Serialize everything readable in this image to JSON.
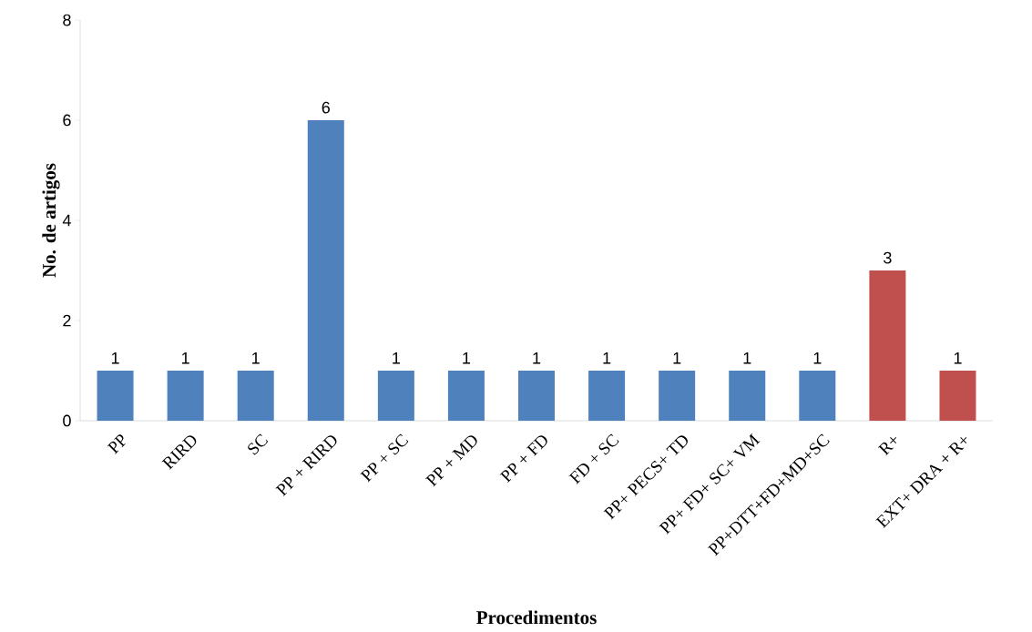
{
  "chart_data": {
    "type": "bar",
    "xlabel": "Procedimentos",
    "ylabel": "No. de artigos",
    "categories": [
      "PP",
      "RIRD",
      "SC",
      "PP + RIRD",
      "PP + SC",
      "PP + MD",
      "PP + FD",
      "FD + SC",
      "PP+ PECS+ TD",
      "PP+ FD+ SC+ VM",
      "PP+DTT+FD+MD+SC",
      "R+",
      "EXT+ DRA + R+"
    ],
    "values": [
      1,
      1,
      1,
      6,
      1,
      1,
      1,
      1,
      1,
      1,
      1,
      3,
      1
    ],
    "colors": [
      "#4f81bd",
      "#4f81bd",
      "#4f81bd",
      "#4f81bd",
      "#4f81bd",
      "#4f81bd",
      "#4f81bd",
      "#4f81bd",
      "#4f81bd",
      "#4f81bd",
      "#4f81bd",
      "#c0504d",
      "#c0504d"
    ],
    "ylim": [
      0,
      8
    ],
    "yticks": [
      0,
      2,
      4,
      6,
      8
    ],
    "data_labels": true
  }
}
